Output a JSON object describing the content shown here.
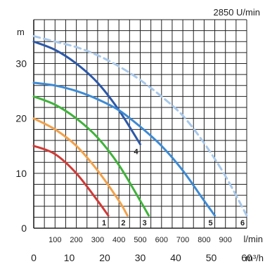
{
  "chart_data": {
    "type": "line",
    "title": "2850 U/min",
    "ylabel": "m",
    "xlabel_primary": "l/min",
    "xlabel_secondary": "m³/h",
    "ylim": [
      0,
      38
    ],
    "xlim_lmin": [
      0,
      1000
    ],
    "xlim_m3h": [
      0,
      60
    ],
    "grid": true,
    "y_ticks": [
      "0",
      "10",
      "20",
      "30"
    ],
    "x_ticks_lmin": [
      "100",
      "200",
      "300",
      "400",
      "500",
      "600",
      "700",
      "800",
      "900"
    ],
    "x_ticks_m3h": [
      "0",
      "10",
      "20",
      "30",
      "40",
      "50",
      "60"
    ],
    "series": [
      {
        "name": "1",
        "color": "#d03a36",
        "dashed": false,
        "x": [
          0,
          100,
          200,
          300,
          350
        ],
        "y": [
          15,
          13.5,
          10,
          5,
          2.3
        ]
      },
      {
        "name": "2",
        "color": "#f2a14a",
        "dashed": false,
        "x": [
          0,
          100,
          200,
          300,
          400,
          440
        ],
        "y": [
          20,
          18,
          15,
          10.5,
          5,
          2.3
        ]
      },
      {
        "name": "3",
        "color": "#40b23b",
        "dashed": false,
        "x": [
          0,
          100,
          200,
          300,
          400,
          500,
          540
        ],
        "y": [
          24,
          22.5,
          20,
          16.5,
          11.5,
          5,
          2.3
        ]
      },
      {
        "name": "4",
        "color": "#2c58a8",
        "dashed": false,
        "x": [
          0,
          100,
          200,
          300,
          400,
          500
        ],
        "y": [
          34,
          32.5,
          30,
          26.5,
          21.5,
          15.3
        ]
      },
      {
        "name": "5",
        "color": "#3d8ad4",
        "dashed": false,
        "x": [
          0,
          100,
          200,
          300,
          400,
          500,
          600,
          700,
          800,
          850
        ],
        "y": [
          26.5,
          26,
          25,
          23.5,
          21.5,
          18.5,
          15,
          10.5,
          5,
          2.3
        ]
      },
      {
        "name": "6",
        "color": "#a8c8ea",
        "dashed": true,
        "x": [
          0,
          100,
          200,
          300,
          400,
          500,
          600,
          700,
          800,
          900,
          1000
        ],
        "y": [
          35,
          34,
          33,
          31.5,
          29.5,
          27,
          24,
          20.5,
          15.5,
          9.5,
          2.3
        ]
      }
    ]
  }
}
